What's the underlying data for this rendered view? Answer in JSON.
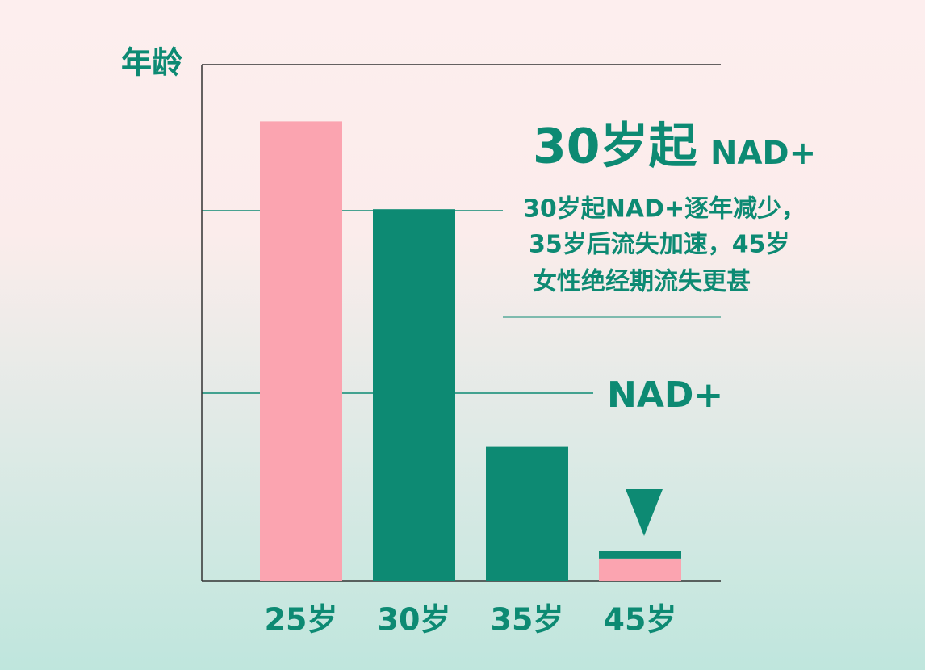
{
  "chart_data": {
    "type": "bar",
    "stacked": true,
    "y_label": "年龄",
    "categories": [
      "25岁",
      "30岁",
      "35岁",
      "45岁"
    ],
    "series": [
      {
        "color": "#fba4b0",
        "values": [
          89,
          null,
          null,
          4.4
        ]
      },
      {
        "color": "#0d8a73",
        "values": [
          null,
          72,
          26,
          1.4
        ]
      }
    ],
    "ylim": [
      0,
      100
    ],
    "annotations": {
      "headline": "30岁起",
      "headline_suffix": "NAD+",
      "lines": [
        "30岁起NAD+逐年减少，",
        "35岁后流失加速，45岁",
        "女性绝经期流失更甚"
      ],
      "marker_label": "NAD+"
    }
  }
}
